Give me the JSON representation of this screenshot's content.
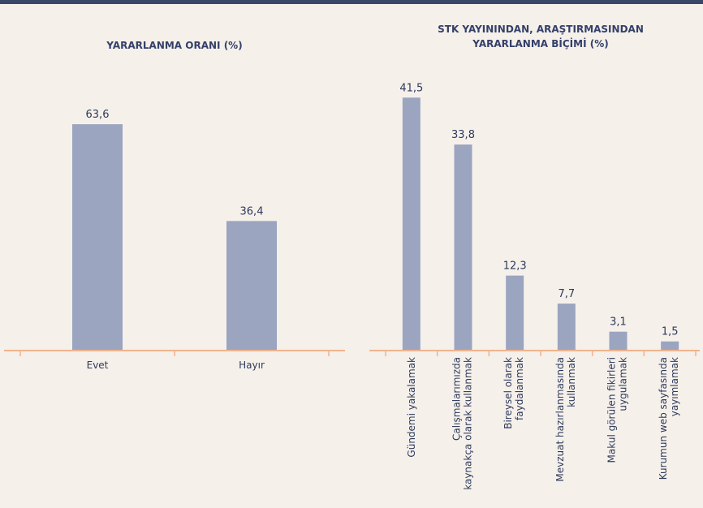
{
  "chart_data": [
    {
      "type": "bar",
      "title": "YARARLANMA ORANI (%)",
      "categories": [
        "Evet",
        "Hayır"
      ],
      "values": [
        63.6,
        36.4
      ],
      "value_labels": [
        "63,6",
        "36,4"
      ],
      "color": "#9ba5c0",
      "ylim": [
        0,
        70
      ]
    },
    {
      "type": "bar",
      "title": "STK YAYININDAN, ARAŞTIRMASINDAN\nYARARLANMA BİÇİMİ (%)",
      "categories": [
        "Gündemi yakalamak",
        "Çalışmalarımızda\nkaynakça olarak kullanmak",
        "Bireysel olarak\nfaydalanmak",
        "Mevzuat hazırlanmasında\nkullanmak",
        "Makul görülen fikirleri\nuygulamak",
        "Kurumun web sayfasında\nyayımlamak"
      ],
      "values": [
        41.5,
        33.8,
        12.3,
        7.7,
        3.1,
        1.5
      ],
      "value_labels": [
        "41,5",
        "33,8",
        "12,3",
        "7,7",
        "3,1",
        "1,5"
      ],
      "color": "#9ba5c0",
      "ylim": [
        0,
        45
      ]
    }
  ]
}
